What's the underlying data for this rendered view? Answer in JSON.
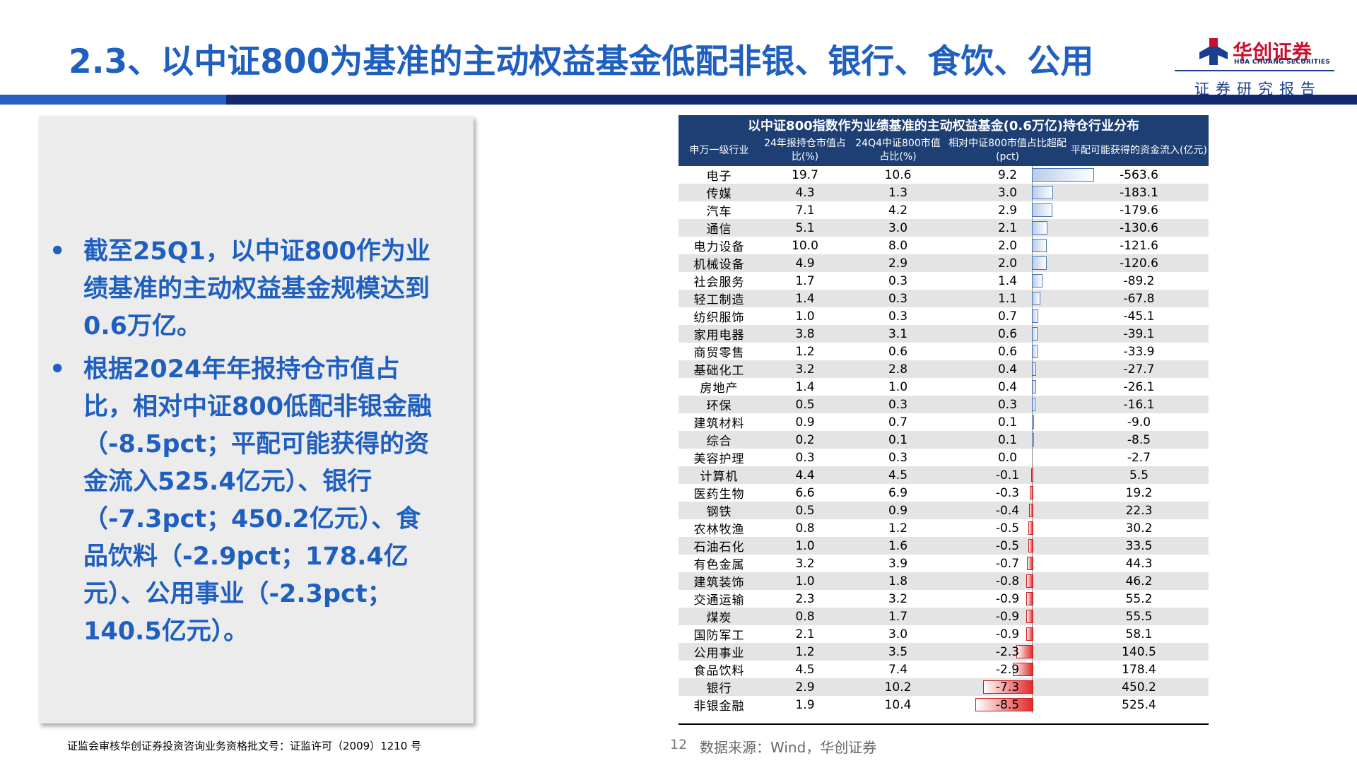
{
  "header": {
    "title": "2.3、以中证800为基准的主动权益基金低配非银、银行、食饮、公用",
    "logo_cn": "华创证券",
    "logo_en": "HUA CHUANG SECURITIES",
    "subtitle": "证券研究报告"
  },
  "bullets": [
    "截至25Q1，以中证800作为业绩基准的主动权益基金规模达到0.6万亿。",
    "根据2024年年报持仓市值占比，相对中证800低配非银金融（-8.5pct；平配可能获得的资金流入525.4亿元）、银行（-7.3pct；450.2亿元）、食品饮料（-2.9pct；178.4亿元）、公用事业（-2.3pct；140.5亿元）。"
  ],
  "bullet_marker": "•",
  "table": {
    "caption": "以中证800指数作为业绩基准的主动权益基金(0.6万亿)持仓行业分布",
    "headers": [
      "申万一级行业",
      "24年报持仓市值占比(%)",
      "24Q4中证800市值占比(%)",
      "相对中证800市值占比超配(pct)",
      "平配可能获得的资金流入(亿元)"
    ],
    "rows": [
      {
        "name": "电子",
        "fund": "19.7",
        "index": "10.6",
        "diff": "9.2",
        "flow": "-563.6"
      },
      {
        "name": "传媒",
        "fund": "4.3",
        "index": "1.3",
        "diff": "3.0",
        "flow": "-183.1"
      },
      {
        "name": "汽车",
        "fund": "7.1",
        "index": "4.2",
        "diff": "2.9",
        "flow": "-179.6"
      },
      {
        "name": "通信",
        "fund": "5.1",
        "index": "3.0",
        "diff": "2.1",
        "flow": "-130.6"
      },
      {
        "name": "电力设备",
        "fund": "10.0",
        "index": "8.0",
        "diff": "2.0",
        "flow": "-121.6"
      },
      {
        "name": "机械设备",
        "fund": "4.9",
        "index": "2.9",
        "diff": "2.0",
        "flow": "-120.6"
      },
      {
        "name": "社会服务",
        "fund": "1.7",
        "index": "0.3",
        "diff": "1.4",
        "flow": "-89.2"
      },
      {
        "name": "轻工制造",
        "fund": "1.4",
        "index": "0.3",
        "diff": "1.1",
        "flow": "-67.8"
      },
      {
        "name": "纺织服饰",
        "fund": "1.0",
        "index": "0.3",
        "diff": "0.7",
        "flow": "-45.1"
      },
      {
        "name": "家用电器",
        "fund": "3.8",
        "index": "3.1",
        "diff": "0.6",
        "flow": "-39.1"
      },
      {
        "name": "商贸零售",
        "fund": "1.2",
        "index": "0.6",
        "diff": "0.6",
        "flow": "-33.9"
      },
      {
        "name": "基础化工",
        "fund": "3.2",
        "index": "2.8",
        "diff": "0.4",
        "flow": "-27.7"
      },
      {
        "name": "房地产",
        "fund": "1.4",
        "index": "1.0",
        "diff": "0.4",
        "flow": "-26.1"
      },
      {
        "name": "环保",
        "fund": "0.5",
        "index": "0.3",
        "diff": "0.3",
        "flow": "-16.1"
      },
      {
        "name": "建筑材料",
        "fund": "0.9",
        "index": "0.7",
        "diff": "0.1",
        "flow": "-9.0"
      },
      {
        "name": "综合",
        "fund": "0.2",
        "index": "0.1",
        "diff": "0.1",
        "flow": "-8.5"
      },
      {
        "name": "美容护理",
        "fund": "0.3",
        "index": "0.3",
        "diff": "0.0",
        "flow": "-2.7"
      },
      {
        "name": "计算机",
        "fund": "4.4",
        "index": "4.5",
        "diff": "-0.1",
        "flow": "5.5"
      },
      {
        "name": "医药生物",
        "fund": "6.6",
        "index": "6.9",
        "diff": "-0.3",
        "flow": "19.2"
      },
      {
        "name": "钢铁",
        "fund": "0.5",
        "index": "0.9",
        "diff": "-0.4",
        "flow": "22.3"
      },
      {
        "name": "农林牧渔",
        "fund": "0.8",
        "index": "1.2",
        "diff": "-0.5",
        "flow": "30.2"
      },
      {
        "name": "石油石化",
        "fund": "1.0",
        "index": "1.6",
        "diff": "-0.5",
        "flow": "33.5"
      },
      {
        "name": "有色金属",
        "fund": "3.2",
        "index": "3.9",
        "diff": "-0.7",
        "flow": "44.3"
      },
      {
        "name": "建筑装饰",
        "fund": "1.0",
        "index": "1.8",
        "diff": "-0.8",
        "flow": "46.2"
      },
      {
        "name": "交通运输",
        "fund": "2.3",
        "index": "3.2",
        "diff": "-0.9",
        "flow": "55.2"
      },
      {
        "name": "煤炭",
        "fund": "0.8",
        "index": "1.7",
        "diff": "-0.9",
        "flow": "55.5"
      },
      {
        "name": "国防军工",
        "fund": "2.1",
        "index": "3.0",
        "diff": "-0.9",
        "flow": "58.1"
      },
      {
        "name": "公用事业",
        "fund": "1.2",
        "index": "3.5",
        "diff": "-2.3",
        "flow": "140.5"
      },
      {
        "name": "食品饮料",
        "fund": "4.5",
        "index": "7.4",
        "diff": "-2.9",
        "flow": "178.4"
      },
      {
        "name": "银行",
        "fund": "2.9",
        "index": "10.2",
        "diff": "-7.3",
        "flow": "450.2"
      },
      {
        "name": "非银金融",
        "fund": "1.9",
        "index": "10.4",
        "diff": "-8.5",
        "flow": "525.4"
      }
    ]
  },
  "footer": {
    "license": "证监会审核华创证券投资咨询业务资格批文号：证监许可（2009）1210 号",
    "page_number": "12",
    "source": "数据来源：Wind，华创证券"
  },
  "colors": {
    "title_blue": "#1f5fbf",
    "band_navy": "#12296e",
    "table_header": "#1e3f73",
    "logo_red": "#c8102e",
    "bar_positive": "#4a76b8",
    "bar_negative": "#e22a2a"
  }
}
